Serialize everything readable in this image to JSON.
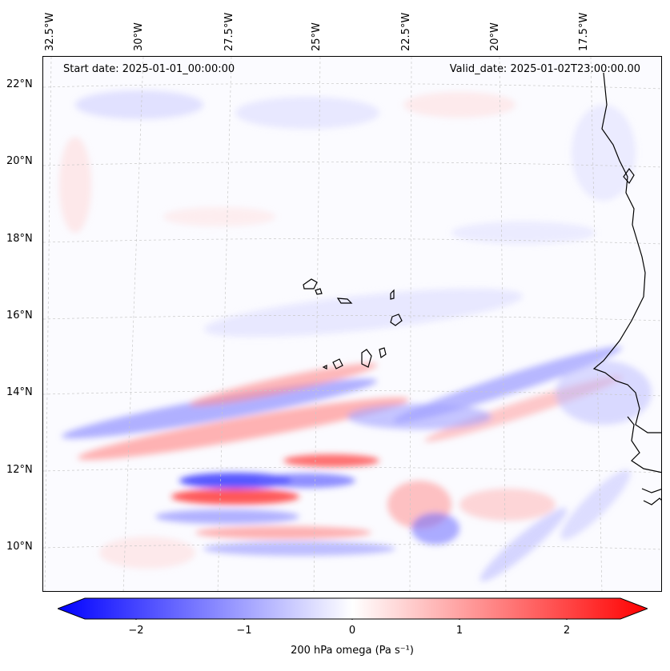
{
  "header": {
    "start_date": "Start date: 2025-01-01_00:00:00",
    "valid_date": "Valid_date: 2025-01-02T23:00:00.00"
  },
  "lon_labels": [
    "32.5°W",
    "30°W",
    "27.5°W",
    "25°W",
    "22.5°W",
    "20°W",
    "17.5°W"
  ],
  "lat_labels": [
    "22°N",
    "20°N",
    "18°N",
    "16°N",
    "14°N",
    "12°N",
    "10°N"
  ],
  "colorbar": {
    "ticks": [
      "−2",
      "−1",
      "0",
      "1",
      "2"
    ],
    "range": [
      -2.5,
      2.5
    ],
    "min_color": "#0000ff",
    "mid_color": "#ffffff",
    "max_color": "#ff0000",
    "label": "200 hPa omega (Pa s⁻¹)"
  },
  "colors": {
    "positive": "#ff0000",
    "negative": "#0000ff",
    "coastline": "#000000",
    "gridline": "#c8c8c8"
  }
}
